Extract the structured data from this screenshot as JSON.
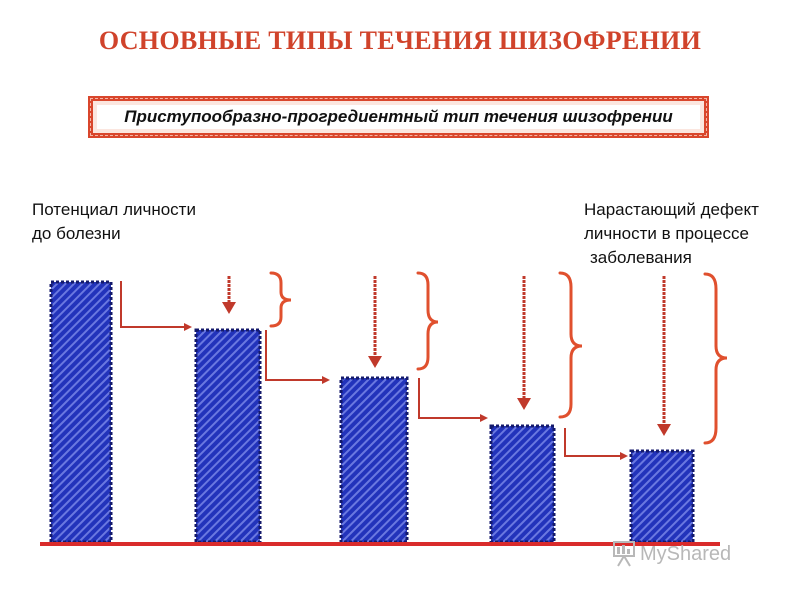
{
  "title": "ОСНОВНЫЕ ТИПЫ ТЕЧЕНИЯ ШИЗОФРЕНИИ",
  "subtitle": "Приступообразно-прогредиентный тип течения шизофрении",
  "left_label": {
    "line1": "Потенциал личности",
    "line2": "до болезни"
  },
  "right_label": {
    "line1": "Нарастающий дефект",
    "line2": "личности в процессе",
    "line3": "заболевания"
  },
  "watermark": "MyShared",
  "colors": {
    "accent": "#d0432b",
    "bar_fill": "#2233bb",
    "bar_stripe": "#6a78e0",
    "baseline": "#d92b2b",
    "arrow": "#c0392b"
  }
}
